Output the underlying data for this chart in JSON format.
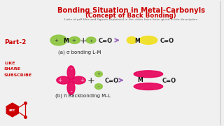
{
  "title_line1": "Bonding Situation in Metal-Carbonyls",
  "title_line2": "(Concept of Back Bonding)",
  "subtitle": "Links of pdf files and figures explained in the video have been given in the description",
  "part_label": "Part-2",
  "like_share": [
    "LIKE",
    "SHARE",
    "SUBSCRIBE"
  ],
  "label_a": "(a) σ bonding L-M",
  "label_b": "(b) π Backbonding M-L",
  "bg_color": "#f0f0f0",
  "title_color": "#cc0000",
  "subtitle_color": "#666666",
  "part_color": "#cc0000",
  "like_color": "#cc0000",
  "green_orbital": "#8dc63f",
  "pink_orbital": "#e8005a",
  "yellow_orbital": "#f0e020",
  "arrow_color": "#9966bb",
  "text_color": "#222222",
  "co_color": "#222222",
  "m_color": "#222222"
}
